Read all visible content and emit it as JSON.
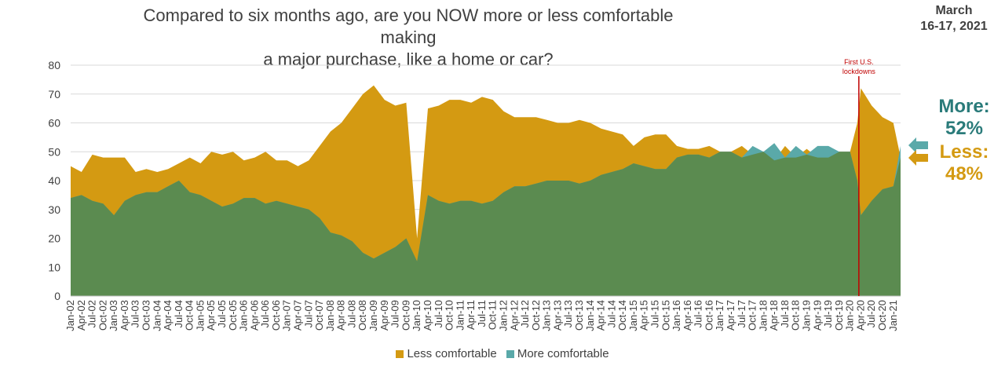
{
  "header": {
    "title_line1": "Compared to six months ago, are you NOW more or less comfortable making",
    "title_line2": "a major purchase, like a home or car?",
    "date_line1": "March",
    "date_line2": "16-17, 2021"
  },
  "callouts": {
    "more_label": "More:",
    "more_value": "52%",
    "less_label": "Less:",
    "less_value": "48%"
  },
  "legend": {
    "less_label": "Less comfortable",
    "more_label": "More comfortable"
  },
  "colors": {
    "less": "#d49a12",
    "more": "#5aa9a9",
    "overlap": "#5b8b50",
    "lockdown": "#c00000",
    "grid": "#d9d9d9",
    "text": "#404040"
  },
  "chart_data": {
    "type": "area",
    "title": "Compared to six months ago, are you NOW more or less comfortable making a major purchase, like a home or car?",
    "xlabel": "",
    "ylabel": "",
    "ylim": [
      0,
      80
    ],
    "yticks": [
      0,
      10,
      20,
      30,
      40,
      50,
      60,
      70,
      80
    ],
    "grid": true,
    "legend_position": "bottom",
    "x_start": "2002-01",
    "x_end": "2021-03",
    "x_tick_labels": [
      "Jan-02",
      "Apr-02",
      "Jul-02",
      "Oct-02",
      "Jan-03",
      "Apr-03",
      "Jul-03",
      "Oct-03",
      "Jan-04",
      "Apr-04",
      "Jul-04",
      "Oct-04",
      "Jan-05",
      "Apr-05",
      "Jul-05",
      "Oct-05",
      "Jan-06",
      "Apr-06",
      "Jul-06",
      "Oct-06",
      "Jan-07",
      "Apr-07",
      "Jul-07",
      "Oct-07",
      "Jan-08",
      "Apr-08",
      "Jul-08",
      "Oct-08",
      "Jan-09",
      "Apr-09",
      "Jul-09",
      "Oct-09",
      "Jan-10",
      "Apr-10",
      "Jul-10",
      "Oct-10",
      "Jan-11",
      "Apr-11",
      "Jul-11",
      "Oct-11",
      "Jan-12",
      "Apr-12",
      "Jul-12",
      "Oct-12",
      "Jan-13",
      "Apr-13",
      "Jul-13",
      "Oct-13",
      "Jan-14",
      "Apr-14",
      "Jul-14",
      "Oct-14",
      "Jan-15",
      "Apr-15",
      "Jul-15",
      "Oct-15",
      "Jan-16",
      "Apr-16",
      "Jul-16",
      "Oct-16",
      "Jan-17",
      "Apr-17",
      "Jul-17",
      "Oct-17",
      "Jan-18",
      "Apr-18",
      "Jul-18",
      "Oct-18",
      "Jan-19",
      "Apr-19",
      "Jul-19",
      "Oct-19",
      "Jan-20",
      "Apr-20",
      "Jul-20",
      "Oct-20",
      "Jan-21"
    ],
    "series": [
      {
        "name": "Less comfortable",
        "points": [
          [
            "2002-01",
            45
          ],
          [
            "2002-04",
            43
          ],
          [
            "2002-07",
            49
          ],
          [
            "2002-10",
            48
          ],
          [
            "2003-01",
            48
          ],
          [
            "2003-04",
            48
          ],
          [
            "2003-07",
            43
          ],
          [
            "2003-10",
            44
          ],
          [
            "2004-01",
            43
          ],
          [
            "2004-04",
            44
          ],
          [
            "2004-07",
            46
          ],
          [
            "2004-10",
            48
          ],
          [
            "2005-01",
            46
          ],
          [
            "2005-04",
            50
          ],
          [
            "2005-07",
            49
          ],
          [
            "2005-10",
            50
          ],
          [
            "2006-01",
            47
          ],
          [
            "2006-04",
            48
          ],
          [
            "2006-07",
            50
          ],
          [
            "2006-10",
            47
          ],
          [
            "2007-01",
            47
          ],
          [
            "2007-04",
            45
          ],
          [
            "2007-07",
            47
          ],
          [
            "2007-10",
            52
          ],
          [
            "2008-01",
            57
          ],
          [
            "2008-04",
            60
          ],
          [
            "2008-07",
            65
          ],
          [
            "2008-10",
            70
          ],
          [
            "2009-01",
            73
          ],
          [
            "2009-04",
            68
          ],
          [
            "2009-07",
            66
          ],
          [
            "2009-10",
            67
          ],
          [
            "2010-01",
            20
          ],
          [
            "2010-04",
            65
          ],
          [
            "2010-07",
            66
          ],
          [
            "2010-10",
            68
          ],
          [
            "2011-01",
            68
          ],
          [
            "2011-04",
            67
          ],
          [
            "2011-07",
            69
          ],
          [
            "2011-10",
            68
          ],
          [
            "2012-01",
            64
          ],
          [
            "2012-04",
            62
          ],
          [
            "2012-07",
            62
          ],
          [
            "2012-10",
            62
          ],
          [
            "2013-01",
            61
          ],
          [
            "2013-04",
            60
          ],
          [
            "2013-07",
            60
          ],
          [
            "2013-10",
            61
          ],
          [
            "2014-01",
            60
          ],
          [
            "2014-04",
            58
          ],
          [
            "2014-07",
            57
          ],
          [
            "2014-10",
            56
          ],
          [
            "2015-01",
            52
          ],
          [
            "2015-04",
            55
          ],
          [
            "2015-07",
            56
          ],
          [
            "2015-10",
            56
          ],
          [
            "2016-01",
            52
          ],
          [
            "2016-04",
            51
          ],
          [
            "2016-07",
            51
          ],
          [
            "2016-10",
            52
          ],
          [
            "2017-01",
            50
          ],
          [
            "2017-04",
            50
          ],
          [
            "2017-07",
            52
          ],
          [
            "2017-10",
            49
          ],
          [
            "2018-01",
            50
          ],
          [
            "2018-04",
            47
          ],
          [
            "2018-07",
            52
          ],
          [
            "2018-10",
            48
          ],
          [
            "2019-01",
            51
          ],
          [
            "2019-04",
            48
          ],
          [
            "2019-07",
            48
          ],
          [
            "2019-10",
            50
          ],
          [
            "2020-01",
            50
          ],
          [
            "2020-03",
            60
          ],
          [
            "2020-04",
            72
          ],
          [
            "2020-07",
            66
          ],
          [
            "2020-10",
            62
          ],
          [
            "2021-01",
            60
          ],
          [
            "2021-03",
            48
          ]
        ]
      },
      {
        "name": "More comfortable",
        "points": [
          [
            "2002-01",
            34
          ],
          [
            "2002-04",
            35
          ],
          [
            "2002-07",
            33
          ],
          [
            "2002-10",
            32
          ],
          [
            "2003-01",
            28
          ],
          [
            "2003-04",
            33
          ],
          [
            "2003-07",
            35
          ],
          [
            "2003-10",
            36
          ],
          [
            "2004-01",
            36
          ],
          [
            "2004-04",
            38
          ],
          [
            "2004-07",
            40
          ],
          [
            "2004-10",
            36
          ],
          [
            "2005-01",
            35
          ],
          [
            "2005-04",
            33
          ],
          [
            "2005-07",
            31
          ],
          [
            "2005-10",
            32
          ],
          [
            "2006-01",
            34
          ],
          [
            "2006-04",
            34
          ],
          [
            "2006-07",
            32
          ],
          [
            "2006-10",
            33
          ],
          [
            "2007-01",
            32
          ],
          [
            "2007-04",
            31
          ],
          [
            "2007-07",
            30
          ],
          [
            "2007-10",
            27
          ],
          [
            "2008-01",
            22
          ],
          [
            "2008-04",
            21
          ],
          [
            "2008-07",
            19
          ],
          [
            "2008-10",
            15
          ],
          [
            "2009-01",
            13
          ],
          [
            "2009-04",
            15
          ],
          [
            "2009-07",
            17
          ],
          [
            "2009-10",
            20
          ],
          [
            "2010-01",
            12
          ],
          [
            "2010-04",
            35
          ],
          [
            "2010-07",
            33
          ],
          [
            "2010-10",
            32
          ],
          [
            "2011-01",
            33
          ],
          [
            "2011-04",
            33
          ],
          [
            "2011-07",
            32
          ],
          [
            "2011-10",
            33
          ],
          [
            "2012-01",
            36
          ],
          [
            "2012-04",
            38
          ],
          [
            "2012-07",
            38
          ],
          [
            "2012-10",
            39
          ],
          [
            "2013-01",
            40
          ],
          [
            "2013-04",
            40
          ],
          [
            "2013-07",
            40
          ],
          [
            "2013-10",
            39
          ],
          [
            "2014-01",
            40
          ],
          [
            "2014-04",
            42
          ],
          [
            "2014-07",
            43
          ],
          [
            "2014-10",
            44
          ],
          [
            "2015-01",
            46
          ],
          [
            "2015-04",
            45
          ],
          [
            "2015-07",
            44
          ],
          [
            "2015-10",
            44
          ],
          [
            "2016-01",
            48
          ],
          [
            "2016-04",
            49
          ],
          [
            "2016-07",
            49
          ],
          [
            "2016-10",
            48
          ],
          [
            "2017-01",
            50
          ],
          [
            "2017-04",
            50
          ],
          [
            "2017-07",
            48
          ],
          [
            "2017-10",
            52
          ],
          [
            "2018-01",
            50
          ],
          [
            "2018-04",
            53
          ],
          [
            "2018-07",
            48
          ],
          [
            "2018-10",
            52
          ],
          [
            "2019-01",
            49
          ],
          [
            "2019-04",
            52
          ],
          [
            "2019-07",
            52
          ],
          [
            "2019-10",
            50
          ],
          [
            "2020-01",
            50
          ],
          [
            "2020-03",
            40
          ],
          [
            "2020-04",
            28
          ],
          [
            "2020-07",
            33
          ],
          [
            "2020-10",
            37
          ],
          [
            "2021-01",
            38
          ],
          [
            "2021-03",
            52
          ]
        ]
      }
    ],
    "annotations": [
      {
        "x": "2020-03",
        "label_line1": "First U.S.",
        "label_line2": "lockdowns"
      }
    ]
  }
}
